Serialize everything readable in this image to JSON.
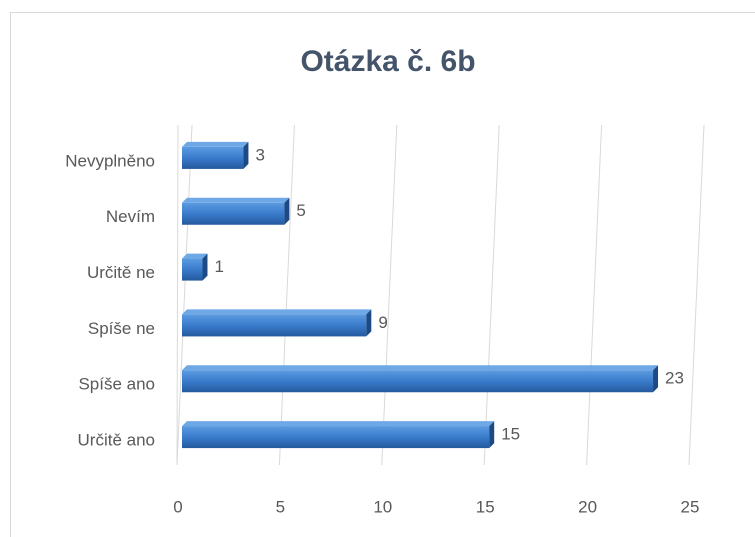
{
  "chart_data": {
    "type": "bar",
    "orientation": "horizontal",
    "title": "Otázka č. 6b",
    "categories": [
      "Nevyplněno",
      "Nevím",
      "Určitě ne",
      "Spíše ne",
      "Spíše ano",
      "Určitě ano"
    ],
    "values": [
      3,
      5,
      1,
      9,
      23,
      15
    ],
    "color": "#2e6fbf",
    "xlim": [
      0,
      25
    ],
    "xticks": [
      0,
      5,
      10,
      15,
      20,
      25
    ],
    "grid": true
  }
}
